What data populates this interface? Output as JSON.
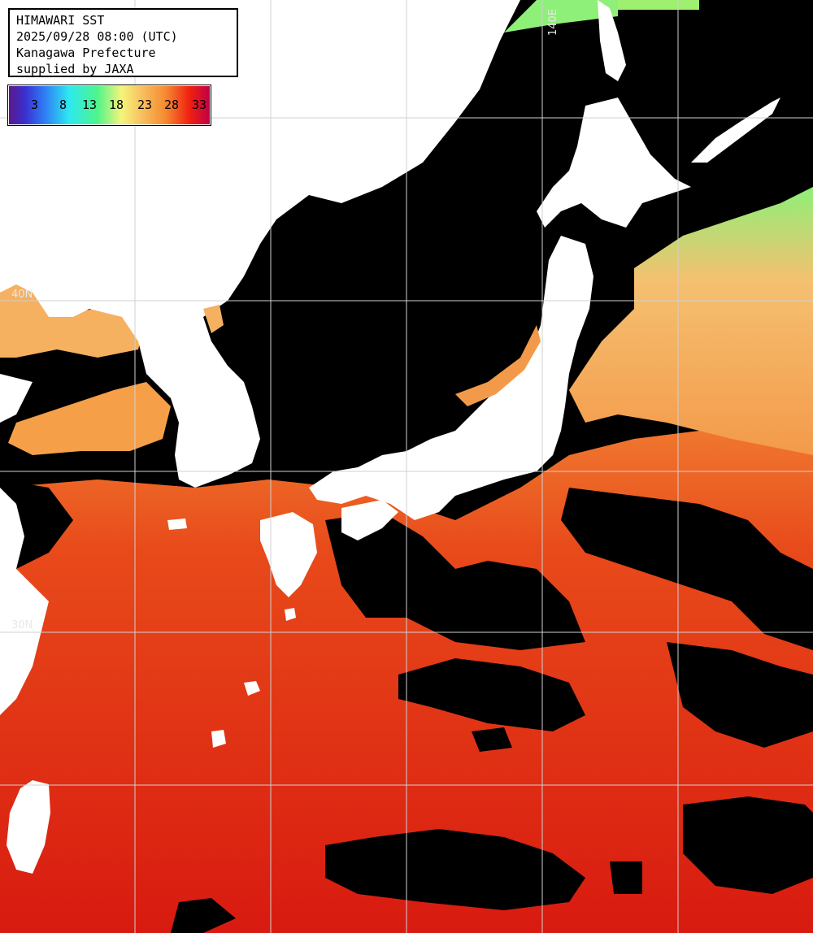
{
  "header": {
    "line1": "HIMAWARI SST",
    "line2": "2025/09/28 08:00 (UTC)",
    "line3": "Kanagawa Prefecture",
    "line4": "supplied by JAXA"
  },
  "color_scale": {
    "ticks": [
      "3",
      "8",
      "13",
      "18",
      "23",
      "28",
      "33"
    ]
  },
  "grid_labels": {
    "lat_upper": "40N",
    "lat_lower": "30N",
    "lon_top": "140E"
  },
  "colors": {
    "land": "#ffffff",
    "cloud": "#000000",
    "sea_warm": "#e83a14",
    "sea_hot": "#d81a10",
    "sea_mid": "#f07a30",
    "sea_cool": "#f5b060",
    "sea_cold": "#7ef07a",
    "grid": "#d0d0d0"
  }
}
